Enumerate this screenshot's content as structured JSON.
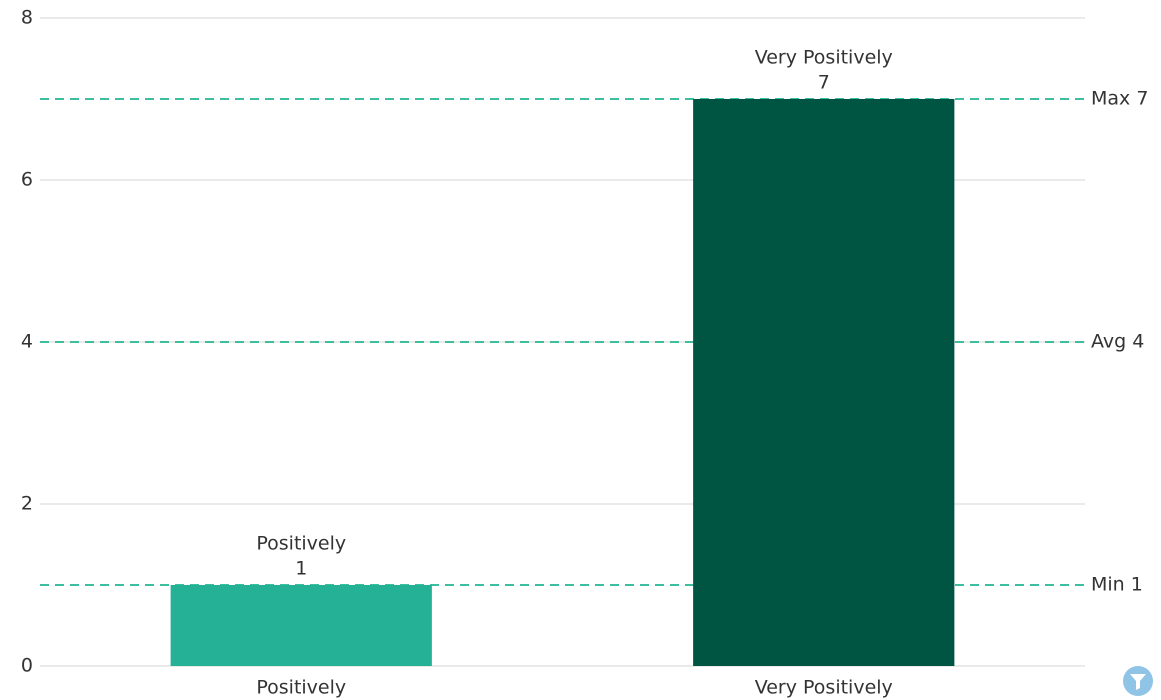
{
  "chart_data": {
    "type": "bar",
    "categories": [
      "Positively",
      "Very Positively"
    ],
    "values": [
      1,
      7
    ],
    "colors": [
      "#25b196",
      "#005442"
    ],
    "ylim": [
      0,
      8
    ],
    "yticks": [
      0,
      2,
      4,
      6,
      8
    ],
    "grid": true,
    "reference_lines": [
      {
        "label": "Max 7",
        "value": 7
      },
      {
        "label": "Avg 4",
        "value": 4
      },
      {
        "label": "Min 1",
        "value": 1
      }
    ],
    "reference_color": "#3dbf9f"
  }
}
